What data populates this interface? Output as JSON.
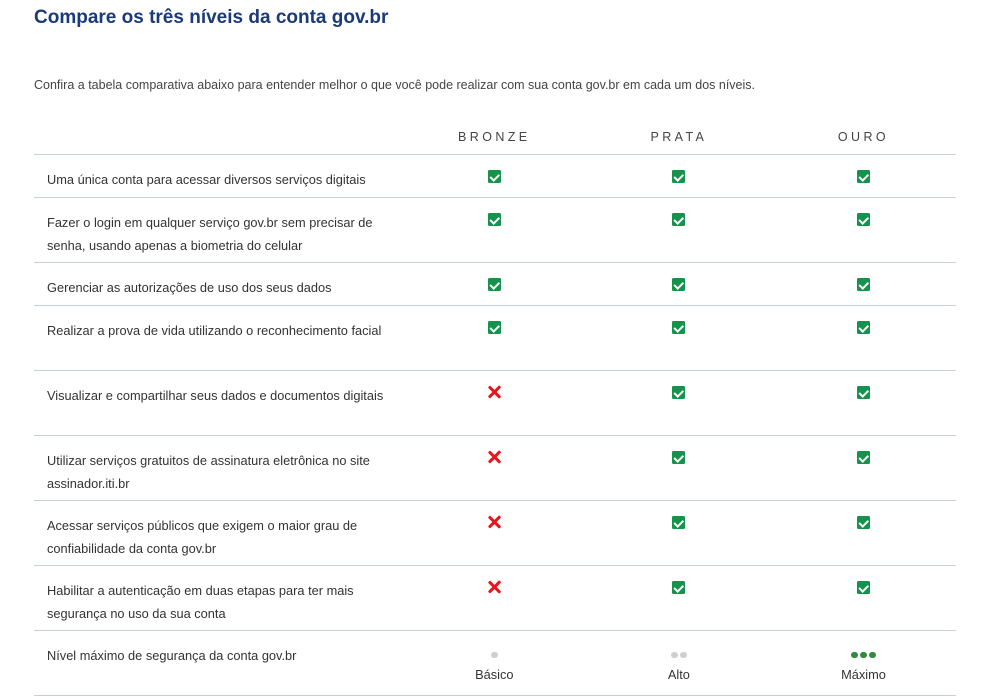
{
  "title": "Compare os três níveis da conta gov.br",
  "intro": "Confira a tabela comparativa abaixo para entender melhor o que você pode realizar com sua conta gov.br em cada um dos níveis.",
  "columns": [
    "BRONZE",
    "PRATA",
    "OURO"
  ],
  "rows": [
    {
      "feature": "Uma única conta para acessar diversos serviços digitais",
      "bronze": "check-icon",
      "prata": "check-icon",
      "ouro": "check-icon"
    },
    {
      "feature": "Fazer o login em qualquer serviço gov.br sem precisar de senha, usando apenas a biometria do celular",
      "bronze": "check-icon",
      "prata": "check-icon",
      "ouro": "check-icon"
    },
    {
      "feature": "Gerenciar as autorizações de uso dos seus dados",
      "bronze": "check-icon",
      "prata": "check-icon",
      "ouro": "check-icon"
    },
    {
      "feature": "Realizar a prova de vida utilizando o reconhecimento facial",
      "bronze": "check-icon",
      "prata": "check-icon",
      "ouro": "check-icon"
    },
    {
      "feature": "Visualizar e compartilhar seus dados e documentos digitais",
      "bronze": "cross-icon",
      "prata": "check-icon",
      "ouro": "check-icon"
    },
    {
      "feature": "Utilizar serviços gratuitos de assinatura eletrônica no site assinador.iti.br",
      "bronze": "cross-icon",
      "prata": "check-icon",
      "ouro": "check-icon"
    },
    {
      "feature": "Acessar serviços públicos que exigem o maior grau de confiabilidade da conta gov.br",
      "bronze": "cross-icon",
      "prata": "check-icon",
      "ouro": "check-icon"
    },
    {
      "feature": "Habilitar a autenticação em duas etapas para ter mais segurança no uso da  sua conta",
      "bronze": "cross-icon",
      "prata": "check-icon",
      "ouro": "check-icon"
    }
  ],
  "security_row": {
    "feature": "Nível máximo de segurança da conta gov.br",
    "levels": [
      {
        "label": "Básico",
        "dots_filled": 1,
        "dot_color": "#cfcfcf"
      },
      {
        "label": "Alto",
        "dots_filled": 2,
        "dot_color": "#cfcfcf"
      },
      {
        "label": "Máximo",
        "dots_filled": 3,
        "dot_color": "#2e8b3f"
      }
    ]
  },
  "colors": {
    "title": "#1b3a7a",
    "check": "#15924b",
    "cross": "#e8151b",
    "divider": "#c9cfd6"
  }
}
